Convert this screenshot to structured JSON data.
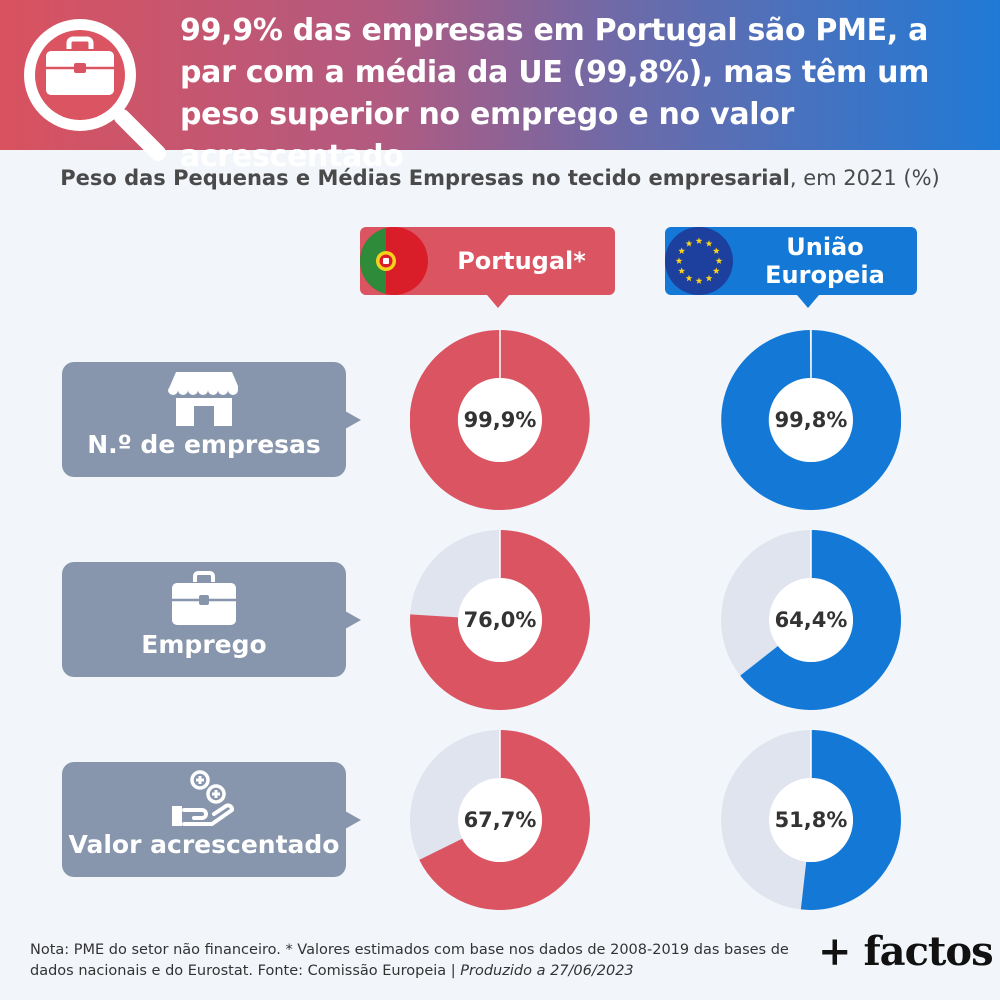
{
  "header": {
    "headline": "99,9% das empresas em Portugal são PME, a par com a média da UE (99,8%), mas têm um peso superior no emprego e no valor acrescentado",
    "icon": "briefcase-magnifier-icon"
  },
  "subtitle": {
    "bold": "Peso das Pequenas e Médias Empresas no tecido empresarial",
    "rest": ", em 2021 (%)"
  },
  "colors": {
    "portugal": "#db5462",
    "eu": "#1479d6",
    "remainder": "#dfe4ee",
    "row_box": "#8796ad"
  },
  "columns": [
    {
      "label": "Portugal*",
      "icon": "portugal-flag-icon"
    },
    {
      "label": "União Europeia",
      "icon": "eu-flag-icon"
    }
  ],
  "rows": [
    {
      "label": "N.º de empresas",
      "icon": "shop-icon"
    },
    {
      "label": "Emprego",
      "icon": "briefcase-icon"
    },
    {
      "label": "Valor acrescentado",
      "icon": "hand-coins-icon"
    }
  ],
  "chart_data": {
    "type": "pie",
    "title": "Peso das Pequenas e Médias Empresas no tecido empresarial, em 2021 (%)",
    "categories": [
      "N.º de empresas",
      "Emprego",
      "Valor acrescentado"
    ],
    "series": [
      {
        "name": "Portugal*",
        "values": [
          99.9,
          76.0,
          67.7
        ],
        "labels": [
          "99,9%",
          "76,0%",
          "67,7%"
        ]
      },
      {
        "name": "União Europeia",
        "values": [
          99.8,
          64.4,
          51.8
        ],
        "labels": [
          "99,8%",
          "64,4%",
          "51,8%"
        ]
      }
    ]
  },
  "footer": {
    "note": "Nota: PME do setor não financeiro. * Valores estimados com base nos dados de 2008-2019 das bases de dados nacionais e do Eurostat. Fonte: Comissão Europeia | ",
    "produced": "Produzido a 27/06/2023",
    "logo": "+ factos"
  }
}
